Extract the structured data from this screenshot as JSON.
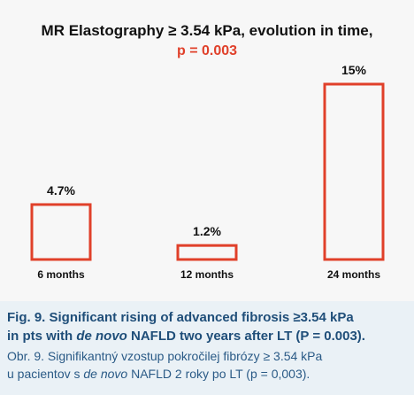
{
  "chart_data": {
    "type": "bar",
    "title": "MR Elastography ≥ 3.54 kPa, evolution in time,",
    "subtitle": "p = 0.003",
    "categories": [
      "6 months",
      "12 months",
      "24 months"
    ],
    "values": [
      4.7,
      1.2,
      15
    ],
    "value_labels": [
      "4.7%",
      "1.2%",
      "15%"
    ],
    "ylim": [
      0,
      15
    ],
    "grid": false,
    "colors": {
      "bar_stroke": "#e0402a",
      "bar_fill": "#f7f7f7",
      "subtitle": "#e0402a"
    }
  },
  "caption": {
    "en_line1": "Fig. 9. Significant rising of advanced  fibrosis ≥3.54 kPa",
    "en_line2_pre": "in pts with ",
    "en_line2_italic": "de novo",
    "en_line2_post": " NAFLD two years after LT (P = 0.003).",
    "sk_line1": "Obr. 9. Signifikantný vzostup pokročilej fibrózy ≥ 3.54 kPa",
    "sk_line2_pre": "u pacientov s ",
    "sk_line2_italic": "de novo",
    "sk_line2_post": " NAFLD 2 roky po LT (p = 0,003)."
  }
}
